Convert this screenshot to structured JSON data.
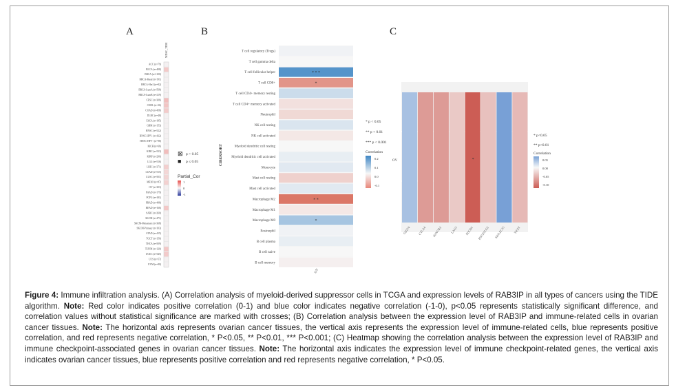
{
  "panels": {
    "a": {
      "letter": "A",
      "column_label": "MDSC_TIDE",
      "cancers": [
        "ACC (n=79)",
        "BLCA (n=408)",
        "BRCA (n=1100)",
        "BRCA-Basal (n=191)",
        "BRCA-Her2 (n=82)",
        "BRCA-LumA (n=568)",
        "BRCA-LumB (n=219)",
        "CESC (n=306)",
        "CHOL (n=36)",
        "COAD (n=458)",
        "DLBC (n=48)",
        "ESCA (n=185)",
        "GBM (n=153)",
        "HNSC (n=522)",
        "HNSC-HPV- (n=422)",
        "HNSC-HPV+ (n=98)",
        "KICH (n=66)",
        "KIRC (n=533)",
        "KIRP (n=290)",
        "LGG (n=516)",
        "LIHC (n=371)",
        "LUAD (n=515)",
        "LUSC (n=501)",
        "MESO (n=87)",
        "OV (n=303)",
        "PAAD (n=179)",
        "PCPG (n=181)",
        "PRAD (n=498)",
        "READ (n=166)",
        "SARC (n=260)",
        "SKCM (n=471)",
        "SKCM-Metastasis (n=368)",
        "SKCM-Primary (n=103)",
        "STAD (n=415)",
        "TGCT (n=150)",
        "THCA (n=509)",
        "THYM (n=120)",
        "UCEC (n=545)",
        "UCS (n=57)",
        "UVM (n=80)"
      ],
      "cell_colors": [
        "#f4f0f1",
        "#f3c9c8",
        "#f4f0f1",
        "#f4f0f1",
        "#f4f0f1",
        "#f4f0f1",
        "#f4f0f1",
        "#f1bcbb",
        "#f2c4c3",
        "#f3cbca",
        "#f4f0f1",
        "#f4f0f1",
        "#f4f0f1",
        "#f4f0f1",
        "#f4f0f1",
        "#f4f0f1",
        "#f4f0f1",
        "#f1bdbc",
        "#f4f0f1",
        "#f4f0f1",
        "#f3cecd",
        "#f4d7d6",
        "#f3d4d3",
        "#f3d1d0",
        "#f4f0f1",
        "#f4f0f1",
        "#f4f0f1",
        "#f4f0f1",
        "#f3c7c6",
        "#f4f0f1",
        "#f4f0f1",
        "#f4f0f1",
        "#f4f0f1",
        "#f4f0f1",
        "#f4f0f1",
        "#f4f0f1",
        "#f3c7c6",
        "#f3caca",
        "#f4f0f1",
        "#f4f0f1"
      ],
      "legend_sig": [
        {
          "symbol": "⊠",
          "label": "p > 0.05"
        },
        {
          "symbol": "■",
          "label": "p ≤ 0.05"
        }
      ],
      "legend_title": "Partial_Cor",
      "legend_ticks": [
        "1",
        "0",
        "-1"
      ]
    },
    "b": {
      "letter": "B",
      "y_axis_title": "CIBERSORT",
      "x_label": "OV",
      "rows": [
        {
          "name": "T cell regulatory (Tregs)",
          "value": 0.01,
          "stars": ""
        },
        {
          "name": "T cell gamma delta",
          "value": 0.0,
          "stars": ""
        },
        {
          "name": "T cell follicular helper",
          "value": 0.22,
          "stars": "* * *"
        },
        {
          "name": "T cell CD8+",
          "value": -0.13,
          "stars": "*"
        },
        {
          "name": "T cell CD4+ memory resting",
          "value": 0.06,
          "stars": ""
        },
        {
          "name": "T cell CD4+ memory activated",
          "value": -0.03,
          "stars": ""
        },
        {
          "name": "Neutrophil",
          "value": -0.04,
          "stars": ""
        },
        {
          "name": "NK cell resting",
          "value": 0.04,
          "stars": ""
        },
        {
          "name": "NK cell activated",
          "value": -0.02,
          "stars": ""
        },
        {
          "name": "Myeloid dendritic cell resting",
          "value": 0.0,
          "stars": ""
        },
        {
          "name": "Myeloid dendritic cell activated",
          "value": 0.02,
          "stars": ""
        },
        {
          "name": "Monocyte",
          "value": 0.03,
          "stars": ""
        },
        {
          "name": "Mast cell resting",
          "value": -0.05,
          "stars": ""
        },
        {
          "name": "Mast cell activated",
          "value": 0.03,
          "stars": ""
        },
        {
          "name": "Macrophage M2",
          "value": -0.17,
          "stars": "* *"
        },
        {
          "name": "Macrophage M1",
          "value": -0.02,
          "stars": ""
        },
        {
          "name": "Macrophage M0",
          "value": 0.11,
          "stars": "*"
        },
        {
          "name": "Eosinophil",
          "value": 0.01,
          "stars": ""
        },
        {
          "name": "B cell plasma",
          "value": 0.02,
          "stars": ""
        },
        {
          "name": "B cell naive",
          "value": 0.0,
          "stars": ""
        },
        {
          "name": "B cell memory",
          "value": -0.01,
          "stars": ""
        }
      ],
      "sig_notes": [
        "* p < 0.05",
        "** p < 0.01",
        "*** p < 0.001"
      ],
      "legend_title": "Correlation",
      "legend_ticks": [
        "0.2",
        "0.1",
        "0.0",
        "-0.1"
      ]
    },
    "c": {
      "letter": "C",
      "row_label": "OV",
      "genes": [
        {
          "name": "CD274",
          "value": 0.05,
          "stars": ""
        },
        {
          "name": "CTLA4",
          "value": -0.06,
          "stars": ""
        },
        {
          "name": "HAVCR2",
          "value": -0.06,
          "stars": ""
        },
        {
          "name": "LAG3",
          "value": -0.03,
          "stars": ""
        },
        {
          "name": "PDCD1",
          "value": -0.1,
          "stars": "*"
        },
        {
          "name": "PDCD1LG2",
          "value": -0.035,
          "stars": ""
        },
        {
          "name": "SIGLEC15",
          "value": 0.08,
          "stars": ""
        },
        {
          "name": "TIGIT",
          "value": -0.04,
          "stars": ""
        }
      ],
      "sig_notes": [
        "* p<0.05",
        "** p<0.01"
      ],
      "legend_title": "Correlation",
      "legend_ticks": [
        "0.05",
        "0.00",
        "-0.05",
        "-0.10"
      ]
    }
  },
  "caption": {
    "figure_label": "Figure 4:",
    "part1": " Immune infiltration analysis. (A) Correlation analysis of myeloid-derived suppressor cells in TCGA and expression levels of RAB3IP in all types of cancers using the TIDE algorithm. ",
    "note1": "Note:",
    "part2": " Red color indicates positive correlation (0-1) and blue color indicates negative correlation (-1-0), p<0.05 represents statistically significant difference, and correlation values without statistical significance are marked with crosses; (B) Correlation analysis between the expression level of RAB3IP and immune-related cells in ovarian cancer tissues. ",
    "note2": "Note:",
    "part3": " The horizontal axis represents ovarian cancer tissues, the vertical axis represents the expression level of immune-related cells, blue represents positive correlation, and red represents negative correlation, * P<0.05, ** P<0.01, *** P<0.001; (C) Heatmap showing the correlation analysis between the expression level of RAB3IP and immune checkpoint-associated genes in ovarian cancer tissues. ",
    "note3": "Note:",
    "part4": " The horizontal axis indicates the expression level of immune checkpoint-related genes, the vertical axis indicates ovarian cancer tissues, blue represents positive correlation and red represents negative correlation, * P<0.05."
  }
}
